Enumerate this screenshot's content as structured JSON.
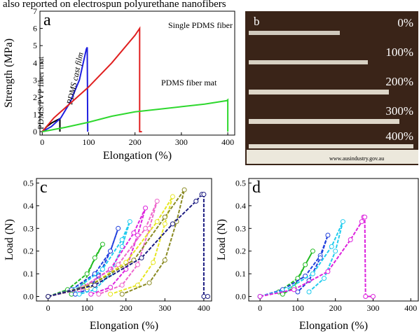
{
  "caption_fragment": "also reported on electrospun polyurethane nanofibers",
  "photo": {
    "label": "b",
    "strains": [
      "0%",
      "100%",
      "200%",
      "300%",
      "400%"
    ],
    "ruler_text": "www.ausindustry.gov.au"
  },
  "chart_data": [
    {
      "type": "line",
      "panel_label": "a",
      "x_label": "Elongation (%)",
      "y_label": "Strength (MPa)",
      "xlim": [
        -5,
        415
      ],
      "ylim": [
        -0.2,
        7
      ],
      "xticks": [
        0,
        100,
        200,
        300,
        400
      ],
      "yticks": [
        0,
        1,
        2,
        3,
        4,
        5,
        6,
        7
      ],
      "series": [
        {
          "name": "PDMS/PVP fiber mat",
          "color": "#000000",
          "x": [
            0,
            10,
            20,
            30,
            38,
            38
          ],
          "values": [
            0,
            0.3,
            0.5,
            0.65,
            0.75,
            0
          ]
        },
        {
          "name": "PDMS cast film",
          "color": "#1f1fe0",
          "x": [
            0,
            20,
            40,
            60,
            80,
            95,
            97,
            98
          ],
          "values": [
            0,
            0.3,
            0.8,
            1.7,
            3,
            4.8,
            4.9,
            0
          ]
        },
        {
          "name": "Single PDMS fiber",
          "color": "#e01f1f",
          "x": [
            0,
            25,
            50,
            100,
            150,
            200,
            210,
            210,
            215
          ],
          "values": [
            0,
            0.8,
            1.4,
            2.6,
            4,
            5.6,
            6,
            0,
            0
          ]
        },
        {
          "name": "PDMS fiber mat",
          "color": "#2ed82e",
          "x": [
            0,
            50,
            100,
            150,
            200,
            250,
            300,
            350,
            398,
            400,
            400
          ],
          "values": [
            0,
            0.25,
            0.55,
            0.9,
            1.15,
            1.3,
            1.45,
            1.6,
            1.8,
            1.85,
            0
          ]
        }
      ]
    },
    {
      "type": "line",
      "panel_label": "c",
      "x_label": "Elongation (%)",
      "y_label": "Load (N)",
      "markers": true,
      "xlim": [
        -30,
        420
      ],
      "ylim": [
        -0.02,
        0.52
      ],
      "xticks": [
        0,
        100,
        200,
        300,
        400
      ],
      "yticks": [
        {
          "value": 0,
          "label": "0.0"
        },
        0.1,
        0.2,
        0.3,
        0.4,
        0.5
      ],
      "series": [
        {
          "color": "#22bb22",
          "x": [
            0,
            50,
            100,
            140,
            120,
            90,
            60
          ],
          "values": [
            0,
            0.03,
            0.1,
            0.23,
            0.17,
            0.05,
            0.01
          ]
        },
        {
          "color": "#1f3fdd",
          "x": [
            0,
            60,
            120,
            160,
            180,
            160,
            130,
            100,
            70
          ],
          "values": [
            0,
            0.03,
            0.1,
            0.2,
            0.3,
            0.2,
            0.09,
            0.03,
            0.01
          ]
        },
        {
          "color": "#22ccee",
          "x": [
            0,
            70,
            140,
            190,
            210,
            190,
            160,
            120,
            80
          ],
          "values": [
            0,
            0.03,
            0.12,
            0.25,
            0.33,
            0.22,
            0.1,
            0.03,
            0.01
          ]
        },
        {
          "color": "#dd22dd",
          "x": [
            0,
            80,
            160,
            220,
            250,
            230,
            200,
            160,
            110
          ],
          "values": [
            0,
            0.03,
            0.12,
            0.28,
            0.39,
            0.27,
            0.12,
            0.04,
            0.01
          ]
        },
        {
          "color": "#ee66cc",
          "x": [
            0,
            90,
            180,
            250,
            280,
            260,
            230,
            190,
            130
          ],
          "values": [
            0,
            0.04,
            0.14,
            0.3,
            0.42,
            0.3,
            0.14,
            0.05,
            0.01
          ]
        },
        {
          "color": "#e6e622",
          "x": [
            0,
            100,
            200,
            280,
            320,
            300,
            270,
            230,
            160
          ],
          "values": [
            0,
            0.04,
            0.15,
            0.33,
            0.44,
            0.32,
            0.15,
            0.05,
            0.01
          ]
        },
        {
          "color": "#8a8a22",
          "x": [
            0,
            110,
            220,
            300,
            350,
            330,
            300,
            260,
            190
          ],
          "values": [
            0,
            0.05,
            0.16,
            0.35,
            0.47,
            0.33,
            0.16,
            0.06,
            0.01
          ]
        },
        {
          "color": "#1a1a80",
          "x": [
            0,
            120,
            240,
            320,
            380,
            395,
            400,
            400,
            410
          ],
          "values": [
            0,
            0.05,
            0.17,
            0.32,
            0.42,
            0.45,
            0.45,
            0,
            0
          ]
        }
      ]
    },
    {
      "type": "line",
      "panel_label": "d",
      "x_label": "Elongation (%)",
      "y_label": "Load (N)",
      "markers": true,
      "xlim": [
        -30,
        420
      ],
      "ylim": [
        -0.02,
        0.52
      ],
      "xticks": [
        0,
        100,
        200,
        300,
        400
      ],
      "yticks": [
        {
          "value": 0,
          "label": "0.0"
        },
        0.1,
        0.2,
        0.3,
        0.4,
        0.5
      ],
      "series": [
        {
          "color": "#22bb22",
          "x": [
            0,
            50,
            100,
            140,
            120,
            90,
            60
          ],
          "values": [
            0,
            0.02,
            0.08,
            0.2,
            0.14,
            0.04,
            0.01
          ]
        },
        {
          "color": "#1f3fdd",
          "x": [
            0,
            60,
            120,
            160,
            180,
            160,
            130,
            100
          ],
          "values": [
            0,
            0.03,
            0.09,
            0.18,
            0.27,
            0.17,
            0.07,
            0.02
          ]
        },
        {
          "color": "#22ccee",
          "x": [
            0,
            70,
            140,
            190,
            220,
            200,
            170,
            130
          ],
          "values": [
            0,
            0.03,
            0.1,
            0.22,
            0.33,
            0.2,
            0.08,
            0.02
          ]
        },
        {
          "color": "#dd22dd",
          "x": [
            0,
            90,
            180,
            240,
            270,
            275,
            278,
            280,
            300
          ],
          "values": [
            0,
            0.03,
            0.11,
            0.25,
            0.33,
            0.35,
            0.35,
            0,
            0
          ]
        }
      ]
    }
  ]
}
